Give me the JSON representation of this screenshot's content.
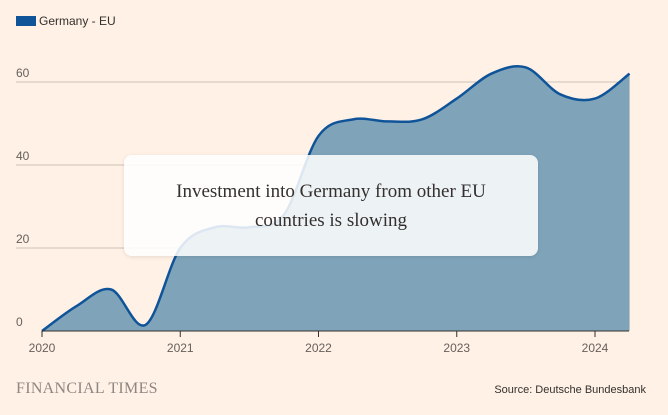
{
  "colors": {
    "background": "#FFF1E5",
    "series_line": "#0F5499",
    "series_fill": "#7FA4BA",
    "grid": "#CCC1B7",
    "axis": "#33302E"
  },
  "chart_data": {
    "type": "area",
    "title": "Investment into Germany from other EU countries is slowing",
    "xlabel": "",
    "ylabel": "",
    "x_ticks": [
      "2020",
      "2021",
      "2022",
      "2023",
      "2024"
    ],
    "y_ticks": [
      0,
      20,
      40,
      60
    ],
    "xlim": [
      2020.0,
      2024.25
    ],
    "ylim": [
      0,
      65
    ],
    "grid": true,
    "legend_position": "top-left",
    "series": [
      {
        "name": "Germany - EU",
        "x": [
          2020.0,
          2020.25,
          2020.5,
          2020.75,
          2021.0,
          2021.25,
          2021.5,
          2021.75,
          2022.0,
          2022.25,
          2022.5,
          2022.75,
          2023.0,
          2023.25,
          2023.5,
          2023.75,
          2024.0,
          2024.25
        ],
        "values": [
          0,
          6,
          10,
          1.5,
          20,
          25,
          25,
          28,
          47,
          51,
          50.5,
          51,
          56,
          62,
          63.5,
          57,
          56,
          62
        ]
      }
    ]
  },
  "overlay": {
    "text": "Investment into Germany from other EU countries is slowing"
  },
  "footer": {
    "brand": "FINANCIAL TIMES",
    "source": "Source: Deutsche Bundesbank"
  }
}
